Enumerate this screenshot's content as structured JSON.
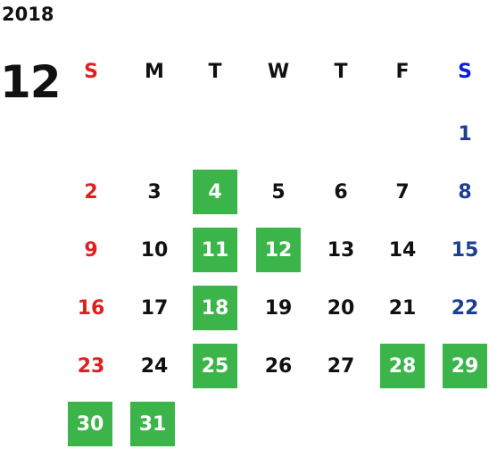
{
  "calendar": {
    "year": "2018",
    "month": "12",
    "weekdays": [
      "S",
      "M",
      "T",
      "W",
      "T",
      "F",
      "S"
    ],
    "highlight_color": "#3bb54a",
    "colors": {
      "sunday": "#e02020",
      "saturday": "#1c3f94",
      "saturday_header": "#0a1fd6",
      "default": "#111111"
    },
    "highlighted_days": [
      "4",
      "11",
      "12",
      "18",
      "25",
      "28",
      "29",
      "30",
      "31"
    ],
    "weeks": [
      [
        "",
        "",
        "",
        "",
        "",
        "",
        "1"
      ],
      [
        "2",
        "3",
        "4",
        "5",
        "6",
        "7",
        "8"
      ],
      [
        "9",
        "10",
        "11",
        "12",
        "13",
        "14",
        "15"
      ],
      [
        "16",
        "17",
        "18",
        "19",
        "20",
        "21",
        "22"
      ],
      [
        "23",
        "24",
        "25",
        "26",
        "27",
        "28",
        "29"
      ],
      [
        "30",
        "31",
        "",
        "",
        "",
        "",
        ""
      ]
    ]
  }
}
